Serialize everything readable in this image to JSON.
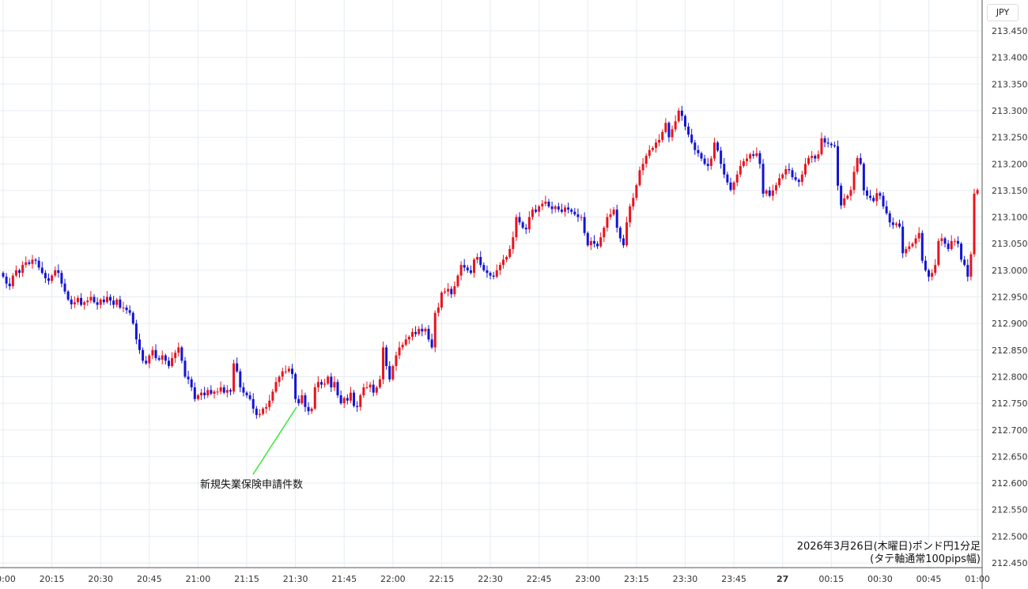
{
  "chart_data": {
    "type": "candlestick",
    "currency_label": "JPY",
    "caption_line1": "2026年3月26日(木曜日)ポンド円1分足",
    "caption_line2": "(タテ軸通常100pips幅)",
    "annotation": "新規失業保険申請件数",
    "annotation_time": "21:30",
    "colors": {
      "up": "#e8141e",
      "down": "#1414d2",
      "grid": "#e6edf3",
      "annotation_line": "#3de83d"
    },
    "ylim": [
      212.45,
      213.45
    ],
    "y_ticks": [
      "212.450",
      "212.500",
      "212.550",
      "212.600",
      "212.650",
      "212.700",
      "212.750",
      "212.800",
      "212.850",
      "212.900",
      "212.950",
      "213.000",
      "213.050",
      "213.100",
      "213.150",
      "213.200",
      "213.250",
      "213.300",
      "213.350",
      "213.400",
      "213.450"
    ],
    "x_ticks": [
      "20:00",
      "20:15",
      "20:30",
      "20:45",
      "21:00",
      "21:15",
      "21:30",
      "21:45",
      "22:00",
      "22:15",
      "22:30",
      "22:45",
      "23:00",
      "23:15",
      "23:30",
      "23:45",
      "27",
      "00:15",
      "00:30",
      "00:45",
      "01:00"
    ],
    "start_time": "20:00",
    "interval_minutes": 1,
    "first_open": 212.995,
    "closes": [
      212.988,
      212.975,
      212.97,
      212.99,
      213.0,
      212.995,
      213.01,
      213.015,
      213.012,
      213.02,
      213.018,
      213.005,
      212.995,
      212.985,
      212.98,
      212.99,
      213.0,
      212.995,
      212.975,
      212.96,
      212.945,
      212.936,
      212.94,
      212.948,
      212.935,
      212.94,
      212.943,
      212.95,
      212.94,
      212.935,
      212.945,
      212.94,
      212.95,
      212.943,
      212.935,
      212.945,
      212.93,
      212.93,
      212.925,
      212.92,
      212.9,
      212.87,
      212.85,
      212.83,
      212.825,
      212.84,
      212.85,
      212.835,
      212.832,
      212.84,
      212.83,
      212.82,
      212.835,
      212.845,
      212.855,
      212.83,
      212.8,
      212.795,
      212.78,
      212.758,
      212.765,
      212.77,
      212.765,
      212.775,
      212.768,
      212.772,
      212.772,
      212.78,
      212.77,
      212.775,
      212.772,
      212.825,
      212.81,
      212.78,
      212.77,
      212.765,
      212.758,
      212.74,
      212.728,
      212.73,
      212.74,
      212.743,
      212.755,
      212.772,
      212.79,
      212.8,
      212.81,
      212.81,
      212.815,
      212.805,
      212.758,
      212.75,
      212.765,
      212.743,
      212.735,
      212.74,
      212.78,
      212.79,
      212.785,
      212.787,
      212.8,
      212.78,
      212.79,
      212.765,
      212.75,
      212.76,
      212.755,
      212.77,
      212.745,
      212.743,
      212.765,
      212.78,
      212.78,
      212.785,
      212.77,
      212.78,
      212.795,
      212.855,
      212.82,
      212.795,
      212.82,
      212.84,
      212.855,
      212.86,
      212.87,
      212.875,
      212.884,
      212.88,
      212.89,
      212.885,
      212.89,
      212.87,
      212.855,
      212.92,
      212.93,
      212.958,
      212.96,
      212.965,
      212.955,
      212.97,
      212.99,
      213.01,
      213.005,
      213.0,
      212.995,
      213.02,
      213.025,
      213.01,
      213.0,
      212.995,
      212.99,
      212.988,
      213.0,
      213.01,
      213.02,
      213.025,
      213.04,
      213.062,
      213.1,
      213.09,
      213.08,
      213.077,
      213.1,
      213.114,
      213.11,
      213.12,
      213.125,
      213.129,
      213.12,
      213.115,
      213.12,
      213.114,
      213.11,
      213.118,
      213.114,
      213.11,
      213.105,
      213.1,
      213.1,
      213.07,
      213.047,
      213.055,
      213.05,
      213.045,
      213.062,
      213.08,
      213.1,
      213.105,
      213.114,
      213.08,
      213.06,
      213.047,
      213.09,
      213.12,
      213.136,
      213.16,
      213.188,
      213.2,
      213.215,
      213.226,
      213.23,
      213.24,
      213.245,
      213.26,
      213.277,
      213.25,
      213.265,
      213.28,
      213.3,
      213.29,
      213.27,
      213.255,
      213.24,
      213.226,
      213.22,
      213.21,
      213.2,
      213.196,
      213.21,
      213.24,
      213.225,
      213.2,
      213.18,
      213.165,
      213.151,
      213.165,
      213.18,
      213.196,
      213.205,
      213.21,
      213.218,
      213.215,
      213.22,
      213.2,
      213.144,
      213.15,
      213.14,
      213.15,
      213.16,
      213.173,
      213.18,
      213.19,
      213.188,
      213.175,
      213.17,
      213.166,
      213.18,
      213.2,
      213.211,
      213.215,
      213.21,
      213.218,
      213.248,
      213.24,
      213.238,
      213.235,
      213.233,
      213.159,
      213.122,
      213.135,
      213.14,
      213.151,
      213.185,
      213.211,
      213.2,
      213.15,
      213.14,
      213.136,
      213.13,
      213.145,
      213.14,
      213.12,
      213.107,
      213.09,
      213.085,
      213.088,
      213.082,
      213.032,
      213.04,
      213.045,
      213.05,
      213.06,
      213.07,
      213.018,
      213.0,
      212.988,
      212.995,
      213.01,
      213.055,
      213.06,
      213.05,
      213.04,
      213.055,
      213.055,
      213.05,
      213.02,
      213.01,
      212.988,
      213.03,
      213.144,
      213.151
    ]
  }
}
